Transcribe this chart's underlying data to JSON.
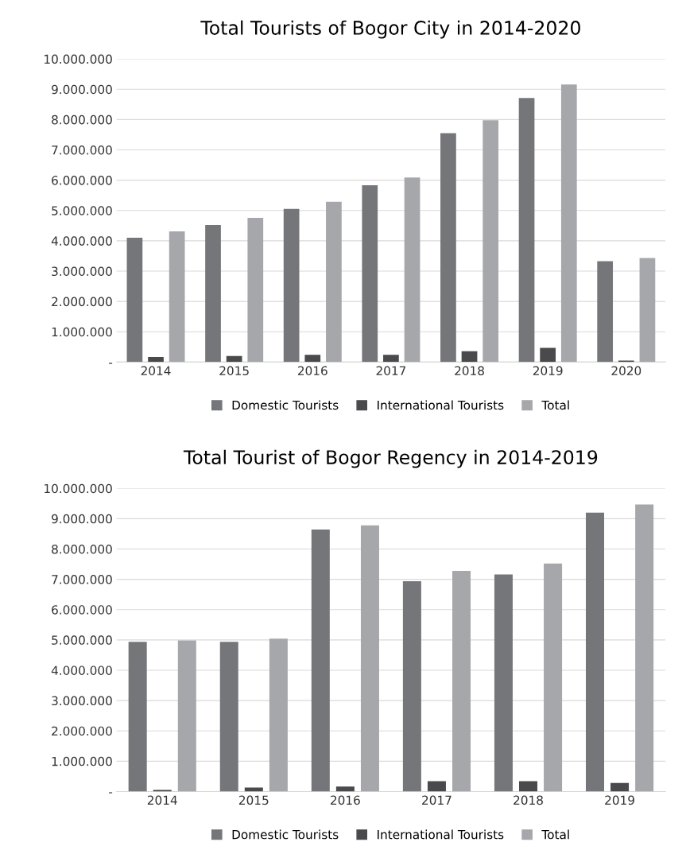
{
  "chart_data": [
    {
      "type": "bar",
      "title": "Total Tourists of Bogor City in 2014-2020",
      "categories": [
        "2014",
        "2015",
        "2016",
        "2017",
        "2018",
        "2019",
        "2020"
      ],
      "series": [
        {
          "name": "Domestic Tourists",
          "color": "#75767a",
          "values": [
            4100000,
            4520000,
            5050000,
            5830000,
            7550000,
            8710000,
            3330000
          ]
        },
        {
          "name": "International Tourists",
          "color": "#4a4a4c",
          "values": [
            170000,
            200000,
            240000,
            240000,
            360000,
            470000,
            50000
          ]
        },
        {
          "name": "Total",
          "color": "#a6a7aa",
          "values": [
            4310000,
            4760000,
            5290000,
            6090000,
            7980000,
            9160000,
            3430000
          ]
        }
      ],
      "ylim": [
        0,
        10000000
      ],
      "yticks": [
        {
          "value": 0,
          "label": "-"
        },
        {
          "value": 1000000,
          "label": "1.000.000"
        },
        {
          "value": 2000000,
          "label": "2.000.000"
        },
        {
          "value": 3000000,
          "label": "3.000.000"
        },
        {
          "value": 4000000,
          "label": "4.000.000"
        },
        {
          "value": 5000000,
          "label": "5.000.000"
        },
        {
          "value": 6000000,
          "label": "6.000.000"
        },
        {
          "value": 7000000,
          "label": "7.000.000"
        },
        {
          "value": 8000000,
          "label": "8.000.000"
        },
        {
          "value": 9000000,
          "label": "9.000.000"
        },
        {
          "value": 10000000,
          "label": "10.000.000"
        }
      ],
      "grid": "y",
      "legend": "bottom"
    },
    {
      "type": "bar",
      "title": "Total Tourist of Bogor Regency in 2014-2019",
      "categories": [
        "2014",
        "2015",
        "2016",
        "2017",
        "2018",
        "2019"
      ],
      "series": [
        {
          "name": "Domestic Tourists",
          "color": "#75767a",
          "values": [
            4940000,
            4940000,
            8640000,
            6940000,
            7160000,
            9200000
          ]
        },
        {
          "name": "International Tourists",
          "color": "#4a4a4c",
          "values": [
            50000,
            130000,
            160000,
            340000,
            340000,
            280000
          ]
        },
        {
          "name": "Total",
          "color": "#a6a7aa",
          "values": [
            4980000,
            5040000,
            8780000,
            7280000,
            7520000,
            9470000
          ]
        }
      ],
      "ylim": [
        0,
        10000000
      ],
      "yticks": [
        {
          "value": 0,
          "label": "-"
        },
        {
          "value": 1000000,
          "label": "1.000.000"
        },
        {
          "value": 2000000,
          "label": "2.000.000"
        },
        {
          "value": 3000000,
          "label": "3.000.000"
        },
        {
          "value": 4000000,
          "label": "4.000.000"
        },
        {
          "value": 5000000,
          "label": "5.000.000"
        },
        {
          "value": 6000000,
          "label": "6.000.000"
        },
        {
          "value": 7000000,
          "label": "7.000.000"
        },
        {
          "value": 8000000,
          "label": "8.000.000"
        },
        {
          "value": 9000000,
          "label": "9.000.000"
        },
        {
          "value": 10000000,
          "label": "10.000.000"
        }
      ],
      "grid": "y",
      "legend": "bottom"
    }
  ]
}
